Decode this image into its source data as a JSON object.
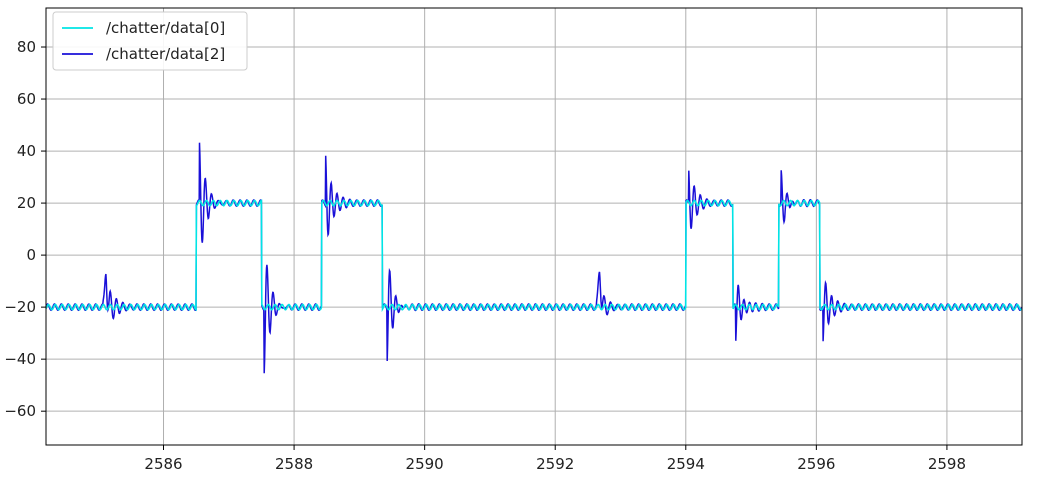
{
  "chart_data": {
    "type": "line",
    "title": "",
    "xlabel": "",
    "ylabel": "",
    "xlim": [
      2584.2,
      2599.15
    ],
    "ylim": [
      -73,
      95
    ],
    "x_ticks": [
      2586,
      2588,
      2590,
      2592,
      2594,
      2596,
      2598
    ],
    "y_ticks": [
      -60,
      -40,
      -20,
      0,
      20,
      40,
      60,
      80
    ],
    "x_tick_labels": [
      "2586",
      "2588",
      "2590",
      "2592",
      "2594",
      "2596",
      "2598"
    ],
    "y_tick_labels": [
      "−60",
      "−40",
      "−20",
      "0",
      "20",
      "40",
      "60",
      "80"
    ],
    "grid": true,
    "legend_position": "top-left",
    "high_level": 20,
    "low_level": -20,
    "series": [
      {
        "name": "/chatter/data[0]",
        "color": "#00e5e5",
        "style": "square-wave",
        "high_intervals": [
          [
            2586.5,
            2587.5
          ],
          [
            2588.42,
            2589.35
          ],
          [
            2594.0,
            2594.72
          ],
          [
            2595.42,
            2596.05
          ]
        ]
      },
      {
        "name": "/chatter/data[2]",
        "color": "#1a10d8",
        "style": "filtered-square-wave",
        "high_intervals": [
          [
            2586.5,
            2587.5
          ],
          [
            2588.42,
            2589.35
          ],
          [
            2594.0,
            2594.72
          ],
          [
            2595.42,
            2596.05
          ]
        ],
        "transients": [
          {
            "x": 2586.55,
            "peak": 43
          },
          {
            "x": 2587.54,
            "peak": -45
          },
          {
            "x": 2588.48,
            "peak": 41
          },
          {
            "x": 2589.42,
            "peak": -43
          },
          {
            "x": 2594.04,
            "peak": 35
          },
          {
            "x": 2594.76,
            "peak": -36
          },
          {
            "x": 2595.46,
            "peak": 33
          },
          {
            "x": 2596.1,
            "peak": -35
          }
        ],
        "spikes": [
          {
            "x": 2585.12,
            "peak": -6,
            "trough": -30
          },
          {
            "x": 2592.68,
            "peak": -6,
            "trough": -26
          }
        ]
      }
    ]
  }
}
